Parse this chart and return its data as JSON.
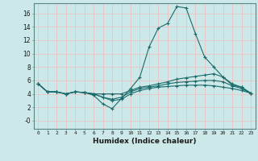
{
  "xlabel": "Humidex (Indice chaleur)",
  "ylabel": "",
  "xlim": [
    -0.5,
    23.5
  ],
  "ylim": [
    -1.2,
    17.5
  ],
  "yticks": [
    0,
    2,
    4,
    6,
    8,
    10,
    12,
    14,
    16
  ],
  "ytick_labels": [
    "-0",
    "2",
    "4",
    "6",
    "8",
    "10",
    "12",
    "14",
    "16"
  ],
  "xticks": [
    0,
    1,
    2,
    3,
    4,
    5,
    6,
    7,
    8,
    9,
    10,
    11,
    12,
    13,
    14,
    15,
    16,
    17,
    18,
    19,
    20,
    21,
    22,
    23
  ],
  "background_color": "#cce8e8",
  "grid_color": "#e8c8c8",
  "line_color": "#1a6b6b",
  "series": [
    {
      "x": [
        0,
        1,
        2,
        3,
        4,
        5,
        6,
        7,
        8,
        9,
        10,
        11,
        12,
        13,
        14,
        15,
        16,
        17,
        18,
        19,
        20,
        21,
        22,
        23
      ],
      "y": [
        5.5,
        4.3,
        4.3,
        4.0,
        4.3,
        4.2,
        3.8,
        2.5,
        1.8,
        3.3,
        4.8,
        6.5,
        11.0,
        13.8,
        14.5,
        17.0,
        16.8,
        13.0,
        9.5,
        8.0,
        6.5,
        5.3,
        5.0,
        4.1
      ]
    },
    {
      "x": [
        0,
        1,
        2,
        3,
        4,
        5,
        6,
        7,
        8,
        9,
        10,
        11,
        12,
        13,
        14,
        15,
        16,
        17,
        18,
        19,
        20,
        21,
        22,
        23
      ],
      "y": [
        5.5,
        4.3,
        4.3,
        4.0,
        4.3,
        4.2,
        4.0,
        4.0,
        4.0,
        4.0,
        4.5,
        5.0,
        5.2,
        5.5,
        5.8,
        6.2,
        6.4,
        6.6,
        6.8,
        7.0,
        6.5,
        5.5,
        5.0,
        4.1
      ]
    },
    {
      "x": [
        0,
        1,
        2,
        3,
        4,
        5,
        6,
        7,
        8,
        9,
        10,
        11,
        12,
        13,
        14,
        15,
        16,
        17,
        18,
        19,
        20,
        21,
        22,
        23
      ],
      "y": [
        5.5,
        4.3,
        4.3,
        4.0,
        4.3,
        4.2,
        4.0,
        3.5,
        3.2,
        3.5,
        4.3,
        4.8,
        5.0,
        5.2,
        5.5,
        5.7,
        5.8,
        5.9,
        6.0,
        6.0,
        5.8,
        5.2,
        4.8,
        4.1
      ]
    },
    {
      "x": [
        0,
        1,
        2,
        3,
        4,
        5,
        6,
        7,
        8,
        9,
        10,
        11,
        12,
        13,
        14,
        15,
        16,
        17,
        18,
        19,
        20,
        21,
        22,
        23
      ],
      "y": [
        5.5,
        4.3,
        4.3,
        4.0,
        4.3,
        4.2,
        4.0,
        3.5,
        3.0,
        3.2,
        4.0,
        4.5,
        4.8,
        5.0,
        5.1,
        5.2,
        5.3,
        5.3,
        5.3,
        5.2,
        5.0,
        4.8,
        4.5,
        4.1
      ]
    }
  ]
}
